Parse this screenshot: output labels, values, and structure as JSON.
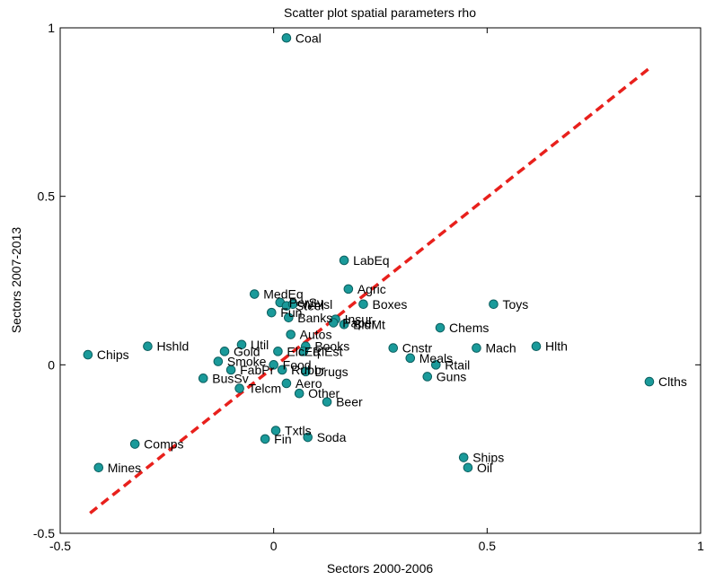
{
  "chart_data": {
    "type": "scatter",
    "title": "Scatter plot spatial parameters rho",
    "xlabel": "Sectors 2000-2006",
    "ylabel": "Sectors 2007-2013",
    "xlim": [
      -0.5,
      1
    ],
    "ylim": [
      -0.5,
      1
    ],
    "xticks": [
      -0.5,
      0,
      0.5,
      1
    ],
    "xtick_labels": [
      "-0.5",
      "0",
      "0.5",
      "1"
    ],
    "yticks": [
      -0.5,
      0,
      0.5,
      1
    ],
    "ytick_labels": [
      "-0.5",
      "0",
      "0.5",
      "1"
    ],
    "grid": false,
    "marker_color": "#1a9a9a",
    "marker_edge": "#0b5e5e",
    "line_color": "#e8201c",
    "reference_line": {
      "x": [
        -0.43,
        0.88
      ],
      "y": [
        -0.44,
        0.88
      ]
    },
    "points": [
      {
        "label": "Coal",
        "x": 0.03,
        "y": 0.97
      },
      {
        "label": "LabEq",
        "x": 0.165,
        "y": 0.31
      },
      {
        "label": "MedEq",
        "x": -0.045,
        "y": 0.21
      },
      {
        "label": "Agric",
        "x": 0.175,
        "y": 0.225
      },
      {
        "label": "PerSv",
        "x": 0.015,
        "y": 0.185
      },
      {
        "label": "Steel",
        "x": 0.03,
        "y": 0.175
      },
      {
        "label": "Whlsl",
        "x": 0.045,
        "y": 0.18
      },
      {
        "label": "Boxes",
        "x": 0.21,
        "y": 0.18
      },
      {
        "label": "Toys",
        "x": 0.515,
        "y": 0.18
      },
      {
        "label": "Fun",
        "x": -0.005,
        "y": 0.155
      },
      {
        "label": "Banks",
        "x": 0.035,
        "y": 0.14
      },
      {
        "label": "Insur",
        "x": 0.145,
        "y": 0.135
      },
      {
        "label": "Paper",
        "x": 0.14,
        "y": 0.125
      },
      {
        "label": "BldMt",
        "x": 0.165,
        "y": 0.12
      },
      {
        "label": "Chems",
        "x": 0.39,
        "y": 0.11
      },
      {
        "label": "Autos",
        "x": 0.04,
        "y": 0.09
      },
      {
        "label": "Hshld",
        "x": -0.295,
        "y": 0.055
      },
      {
        "label": "Util",
        "x": -0.075,
        "y": 0.06
      },
      {
        "label": "Books",
        "x": 0.075,
        "y": 0.055
      },
      {
        "label": "Cnstr",
        "x": 0.28,
        "y": 0.05
      },
      {
        "label": "Mach",
        "x": 0.475,
        "y": 0.05
      },
      {
        "label": "Hlth",
        "x": 0.615,
        "y": 0.055
      },
      {
        "label": "Gold",
        "x": -0.115,
        "y": 0.04
      },
      {
        "label": "ElcEq",
        "x": 0.01,
        "y": 0.04
      },
      {
        "label": "RlEst",
        "x": 0.07,
        "y": 0.04
      },
      {
        "label": "Chips",
        "x": -0.435,
        "y": 0.03
      },
      {
        "label": "Meals",
        "x": 0.32,
        "y": 0.02
      },
      {
        "label": "Smoke",
        "x": -0.13,
        "y": 0.01
      },
      {
        "label": "Food",
        "x": 0.0,
        "y": 0.0
      },
      {
        "label": "Rtail",
        "x": 0.38,
        "y": 0.0
      },
      {
        "label": "FabPr",
        "x": -0.1,
        "y": -0.015
      },
      {
        "label": "Rubbr",
        "x": 0.02,
        "y": -0.015
      },
      {
        "label": "Drugs",
        "x": 0.075,
        "y": -0.02
      },
      {
        "label": "BusSv",
        "x": -0.165,
        "y": -0.04
      },
      {
        "label": "Guns",
        "x": 0.36,
        "y": -0.035
      },
      {
        "label": "Clths",
        "x": 0.88,
        "y": -0.05
      },
      {
        "label": "Aero",
        "x": 0.03,
        "y": -0.055
      },
      {
        "label": "Telcm",
        "x": -0.08,
        "y": -0.07
      },
      {
        "label": "Other",
        "x": 0.06,
        "y": -0.085
      },
      {
        "label": "Beer",
        "x": 0.125,
        "y": -0.11
      },
      {
        "label": "Txtls",
        "x": 0.005,
        "y": -0.195
      },
      {
        "label": "Soda",
        "x": 0.08,
        "y": -0.215
      },
      {
        "label": "Fin",
        "x": -0.02,
        "y": -0.22
      },
      {
        "label": "Comps",
        "x": -0.325,
        "y": -0.235
      },
      {
        "label": "Ships",
        "x": 0.445,
        "y": -0.275
      },
      {
        "label": "Oil",
        "x": 0.455,
        "y": -0.305
      },
      {
        "label": "Mines",
        "x": -0.41,
        "y": -0.305
      }
    ]
  }
}
